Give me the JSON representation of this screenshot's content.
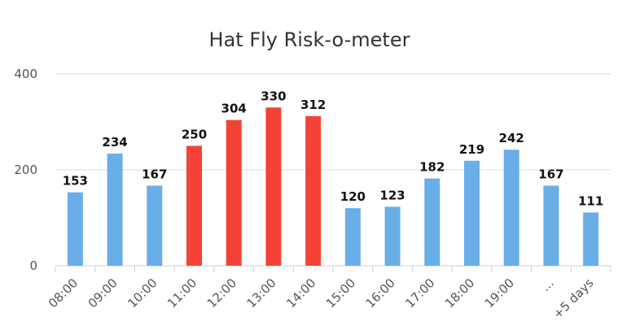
{
  "chart_data": {
    "type": "bar",
    "title": "Hat Fly Risk-o-meter",
    "xlabel": "",
    "ylabel": "",
    "ylim": [
      0,
      400
    ],
    "yticks": [
      0,
      200,
      400
    ],
    "grid": true,
    "legend": "none",
    "categories": [
      "08:00",
      "09:00",
      "10:00",
      "11:00",
      "12:00",
      "13:00",
      "14:00",
      "15:00",
      "16:00",
      "17:00",
      "18:00",
      "19:00",
      "...",
      "+5 days"
    ],
    "values": [
      153,
      234,
      167,
      250,
      304,
      330,
      312,
      120,
      123,
      182,
      219,
      242,
      167,
      111
    ],
    "bar_colors": [
      "#6aaee8",
      "#6aaee8",
      "#6aaee8",
      "#f44336",
      "#f44336",
      "#f44336",
      "#f44336",
      "#6aaee8",
      "#6aaee8",
      "#6aaee8",
      "#6aaee8",
      "#6aaee8",
      "#6aaee8",
      "#6aaee8"
    ],
    "colors": {
      "normal": "#6aaee8",
      "high": "#f44336"
    }
  }
}
